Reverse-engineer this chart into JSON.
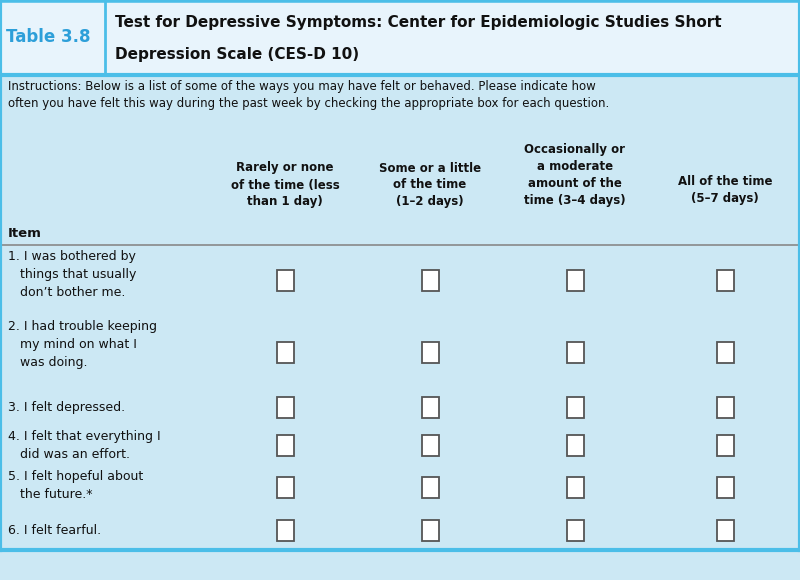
{
  "title_label": "Table 3.8",
  "title_text_line1": "Test for Depressive Symptoms: Center for Epidemiologic Studies Short",
  "title_text_line2": "Depression Scale (CES-D 10)",
  "instructions_line1": "Instructions: Below is a list of some of the ways you may have felt or behaved. Please indicate how",
  "instructions_line2": "often you have felt this way during the past week by checking the appropriate box for each question.",
  "col_headers": [
    "Item",
    "Rarely or none\nof the time (less\nthan 1 day)",
    "Some or a little\nof the time\n(1–2 days)",
    "Occasionally or\na moderate\namount of the\ntime (3–4 days)",
    "All of the time\n(5–7 days)"
  ],
  "items": [
    "1. I was bothered by\n   things that usually\n   don’t bother me.",
    "2. I had trouble keeping\n   my mind on what I\n   was doing.",
    "3. I felt depressed.",
    "4. I felt that everything I\n   did was an effort.",
    "5. I felt hopeful about\n   the future.*",
    "6. I felt fearful."
  ],
  "bg_color": "#cce8f4",
  "title_bar_bg": "#e8f4fc",
  "title_label_color": "#2d9fd9",
  "title_text_color": "#111111",
  "border_color_top": "#4bbee8",
  "border_color_bottom": "#4bbee8",
  "divider_color": "#4bbee8",
  "header_line_color": "#888888",
  "checkbox_edge_color": "#555555",
  "text_color": "#111111",
  "fig_width": 8.0,
  "fig_height": 5.8
}
